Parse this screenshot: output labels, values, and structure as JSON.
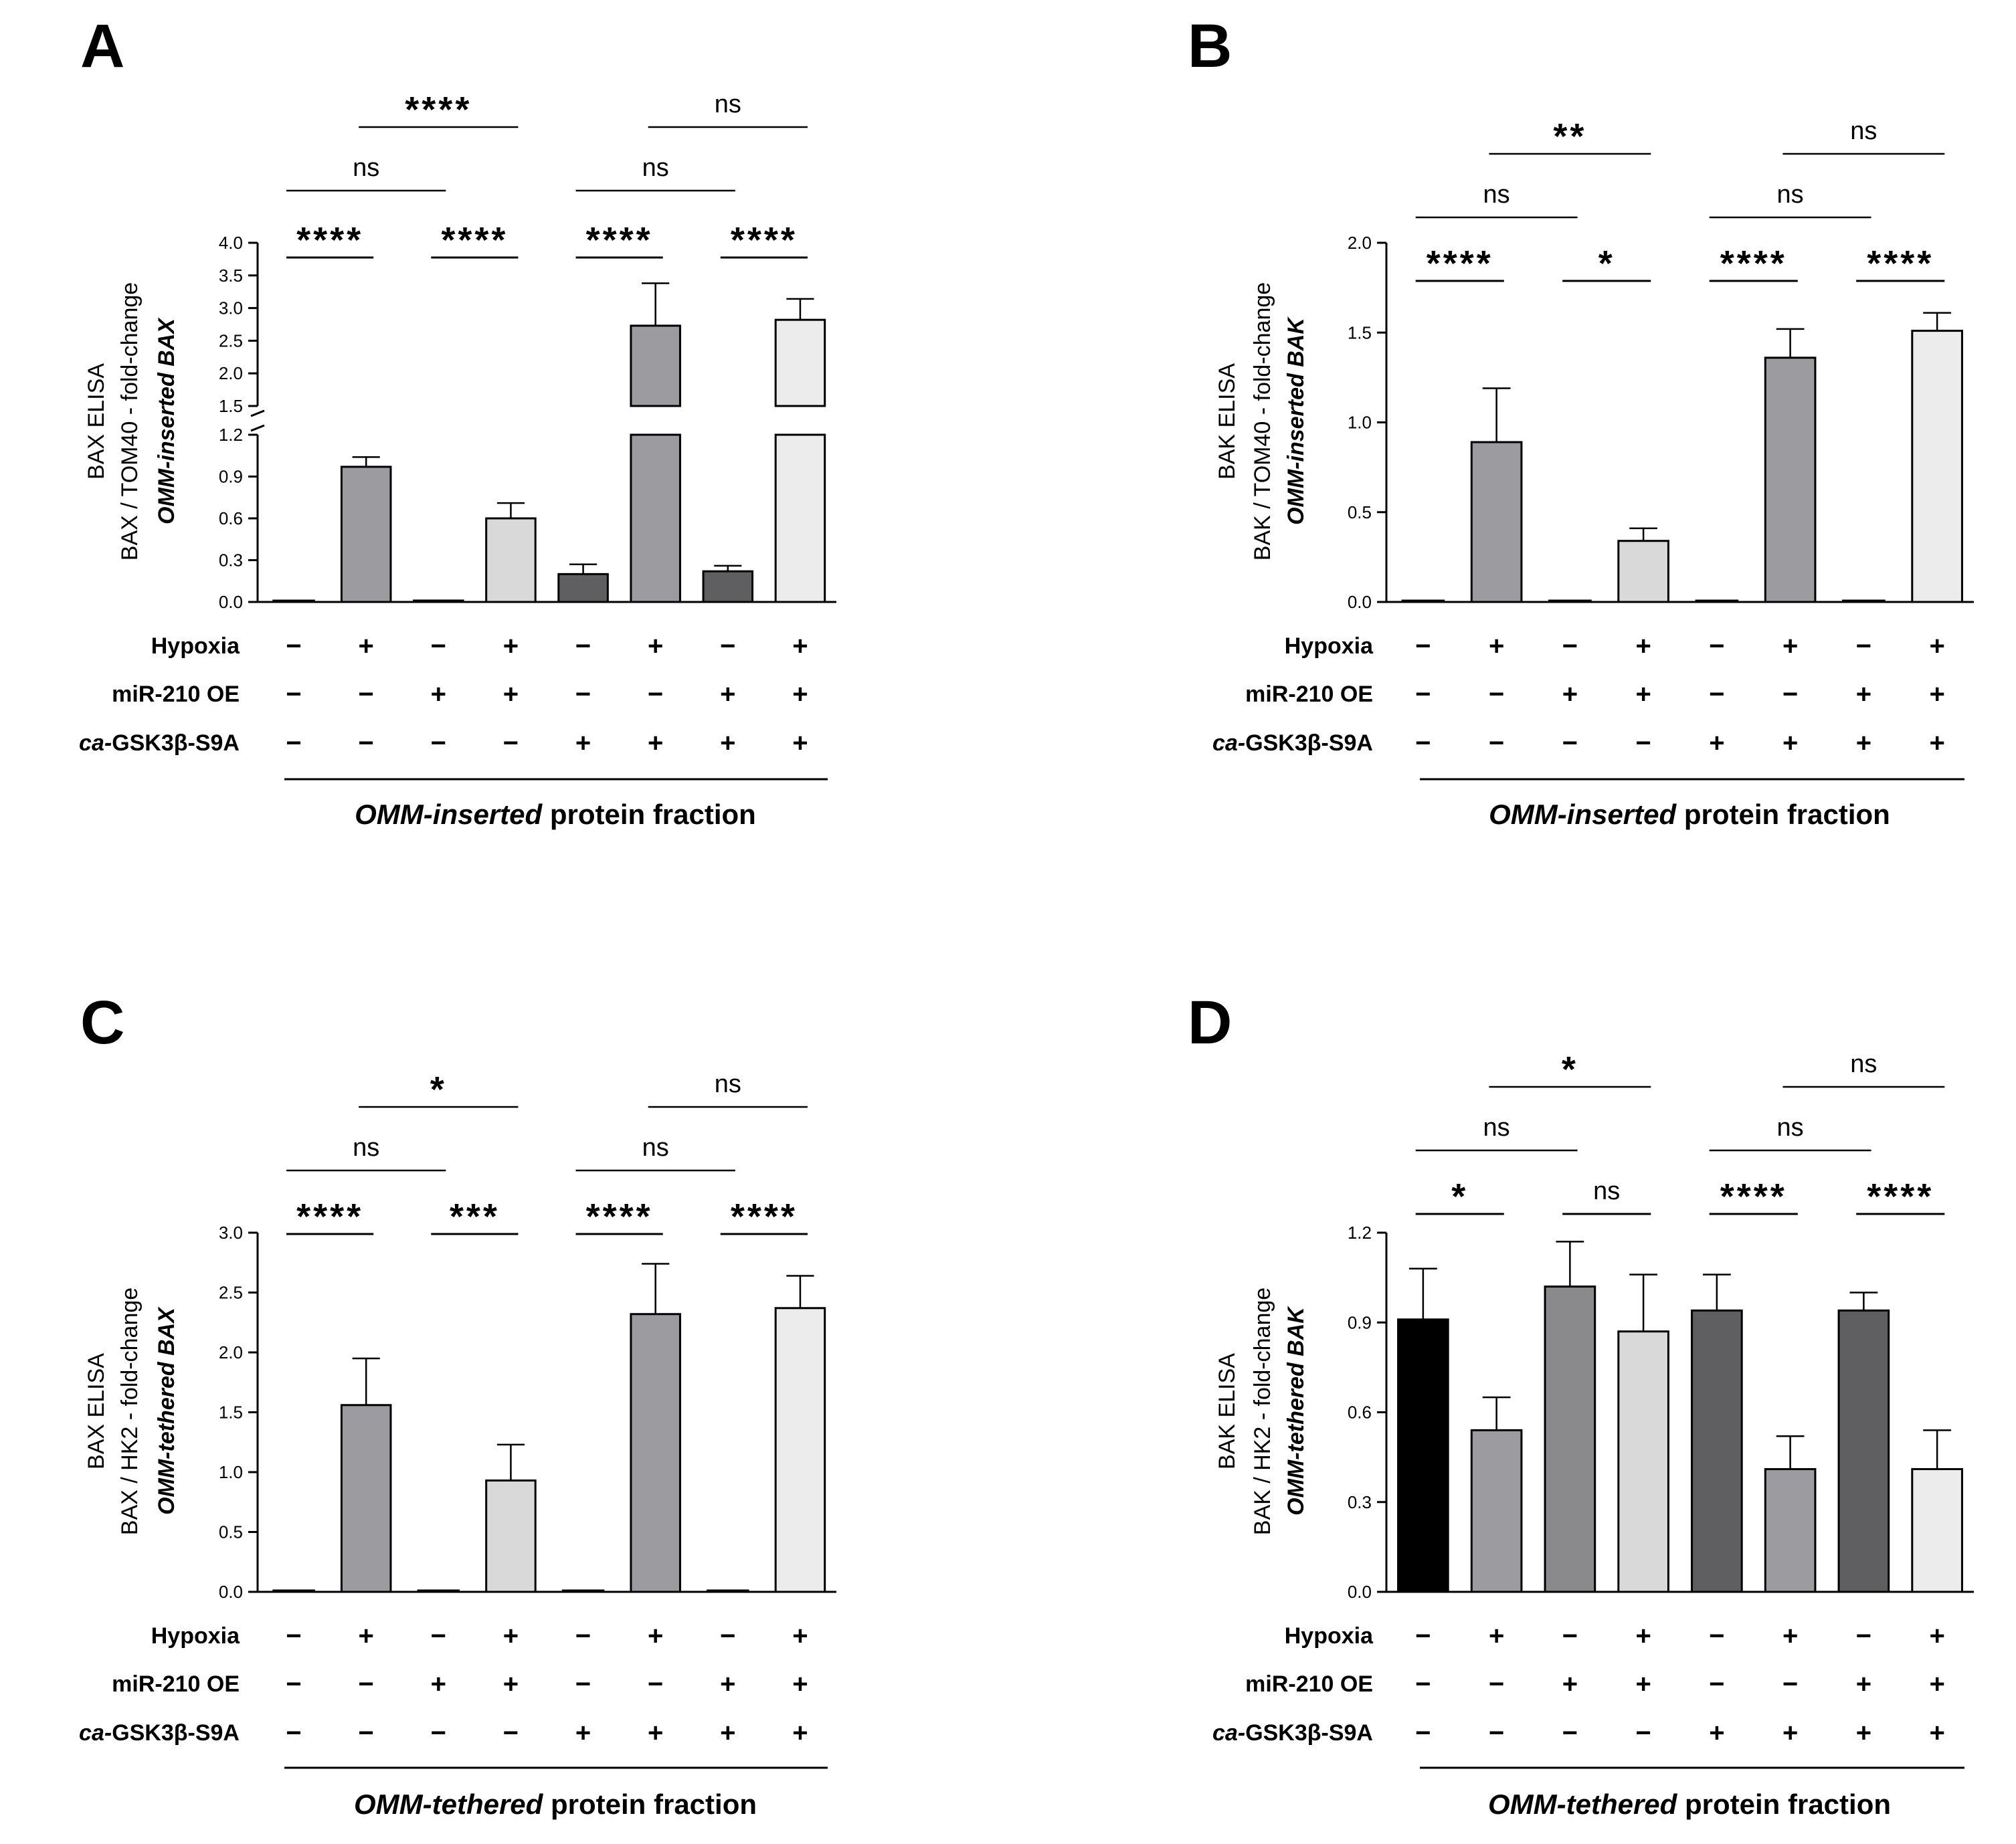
{
  "colors": {
    "black": "#000000",
    "dark": "#5f5f61",
    "medium": "#9b9ba0",
    "light": "#d9d9d9",
    "lighter": "#ececec",
    "medium2": "#8a8a8c"
  },
  "row_labels": [
    "Hypoxia",
    "miR-210 OE",
    "ca-GSK3β-S9A"
  ],
  "chart_data": [
    {
      "panel": "A",
      "type": "bar",
      "title": "A",
      "ylabel": [
        "BAX  ELISA",
        "BAX / TOM40 - fold-change",
        "OMM-inserted BAX"
      ],
      "broken_axis": true,
      "ylim_lower": [
        0,
        1.2
      ],
      "ylim_upper": [
        1.5,
        4.0
      ],
      "yticks_lower": [
        "0.0",
        "0.3",
        "0.6",
        "0.9",
        "1.2"
      ],
      "yticks_upper": [
        "1.5",
        "2.0",
        "2.5",
        "3.0",
        "3.5",
        "4.0"
      ],
      "values": [
        0.0,
        0.97,
        0.01,
        0.6,
        0.2,
        2.73,
        0.22,
        2.82
      ],
      "errors": [
        0.0,
        0.07,
        0.0,
        0.11,
        0.07,
        0.65,
        0.04,
        0.32
      ],
      "colors": [
        "medium",
        "medium",
        "light",
        "light",
        "dark",
        "medium",
        "dark",
        "lighter"
      ],
      "hypoxia": [
        "−",
        "+",
        "−",
        "+",
        "−",
        "+",
        "−",
        "+"
      ],
      "mir210": [
        "−",
        "−",
        "+",
        "+",
        "−",
        "−",
        "+",
        "+"
      ],
      "gsk": [
        "−",
        "−",
        "−",
        "−",
        "+",
        "+",
        "+",
        "+"
      ],
      "xlabel_italic": "OMM-inserted",
      "xlabel_rest": " protein fraction",
      "annotations": [
        {
          "from": 0,
          "to": 1,
          "level": 0,
          "text": "****"
        },
        {
          "from": 2,
          "to": 3,
          "level": 0,
          "text": "****"
        },
        {
          "from": 4,
          "to": 5,
          "level": 0,
          "text": "****"
        },
        {
          "from": 6,
          "to": 7,
          "level": 0,
          "text": "****"
        },
        {
          "from": 0,
          "to": 2,
          "level": 1,
          "text": "ns"
        },
        {
          "from": 4,
          "to": 6,
          "level": 1,
          "text": "ns"
        },
        {
          "from": 1,
          "to": 3,
          "level": 2,
          "text": "****"
        },
        {
          "from": 5,
          "to": 7,
          "level": 2,
          "text": "ns"
        }
      ]
    },
    {
      "panel": "B",
      "type": "bar",
      "title": "B",
      "ylabel": [
        "BAK  ELISA",
        "BAK / TOM40 - fold-change",
        "OMM-inserted BAK"
      ],
      "broken_axis": false,
      "ylim": [
        0,
        2.0
      ],
      "yticks": [
        "0.0",
        "0.5",
        "1.0",
        "1.5",
        "2.0"
      ],
      "tick_values": [
        0,
        0.5,
        1.0,
        1.5,
        2.0
      ],
      "values": [
        0.0,
        0.89,
        0.0,
        0.34,
        0.0,
        1.36,
        0.0,
        1.51
      ],
      "errors": [
        0.0,
        0.3,
        0.0,
        0.07,
        0.0,
        0.16,
        0.0,
        0.1
      ],
      "colors": [
        "medium",
        "medium",
        "light",
        "light",
        "dark",
        "medium",
        "dark",
        "lighter"
      ],
      "hypoxia": [
        "−",
        "+",
        "−",
        "+",
        "−",
        "+",
        "−",
        "+"
      ],
      "mir210": [
        "−",
        "−",
        "+",
        "+",
        "−",
        "−",
        "+",
        "+"
      ],
      "gsk": [
        "−",
        "−",
        "−",
        "−",
        "+",
        "+",
        "+",
        "+"
      ],
      "xlabel_italic": "OMM-inserted",
      "xlabel_rest": " protein fraction",
      "annotations": [
        {
          "from": 0,
          "to": 1,
          "level": 0,
          "text": "****"
        },
        {
          "from": 2,
          "to": 3,
          "level": 0,
          "text": "*"
        },
        {
          "from": 4,
          "to": 5,
          "level": 0,
          "text": "****"
        },
        {
          "from": 6,
          "to": 7,
          "level": 0,
          "text": "****"
        },
        {
          "from": 0,
          "to": 2,
          "level": 1,
          "text": "ns"
        },
        {
          "from": 4,
          "to": 6,
          "level": 1,
          "text": "ns"
        },
        {
          "from": 1,
          "to": 3,
          "level": 2,
          "text": "**"
        },
        {
          "from": 5,
          "to": 7,
          "level": 2,
          "text": "ns"
        }
      ]
    },
    {
      "panel": "C",
      "type": "bar",
      "title": "C",
      "ylabel": [
        "BAX  ELISA",
        "BAX / HK2 - fold-change",
        "OMM-tethered BAX"
      ],
      "broken_axis": false,
      "ylim": [
        0,
        3.0
      ],
      "yticks": [
        "0.0",
        "0.5",
        "1.0",
        "1.5",
        "2.0",
        "2.5",
        "3.0"
      ],
      "tick_values": [
        0,
        0.5,
        1.0,
        1.5,
        2.0,
        2.5,
        3.0
      ],
      "values": [
        0.0,
        1.56,
        0.0,
        0.93,
        0.0,
        2.32,
        0.0,
        2.37
      ],
      "errors": [
        0.0,
        0.39,
        0.0,
        0.3,
        0.0,
        0.42,
        0.0,
        0.27
      ],
      "colors": [
        "medium",
        "medium",
        "light",
        "light",
        "dark",
        "medium",
        "dark",
        "lighter"
      ],
      "hypoxia": [
        "−",
        "+",
        "−",
        "+",
        "−",
        "+",
        "−",
        "+"
      ],
      "mir210": [
        "−",
        "−",
        "+",
        "+",
        "−",
        "−",
        "+",
        "+"
      ],
      "gsk": [
        "−",
        "−",
        "−",
        "−",
        "+",
        "+",
        "+",
        "+"
      ],
      "xlabel_italic": "OMM-tethered",
      "xlabel_rest": " protein fraction",
      "annotations": [
        {
          "from": 0,
          "to": 1,
          "level": 0,
          "text": "****"
        },
        {
          "from": 2,
          "to": 3,
          "level": 0,
          "text": "***"
        },
        {
          "from": 4,
          "to": 5,
          "level": 0,
          "text": "****"
        },
        {
          "from": 6,
          "to": 7,
          "level": 0,
          "text": "****"
        },
        {
          "from": 0,
          "to": 2,
          "level": 1,
          "text": "ns"
        },
        {
          "from": 4,
          "to": 6,
          "level": 1,
          "text": "ns"
        },
        {
          "from": 1,
          "to": 3,
          "level": 2,
          "text": "*"
        },
        {
          "from": 5,
          "to": 7,
          "level": 2,
          "text": "ns"
        }
      ]
    },
    {
      "panel": "D",
      "type": "bar",
      "title": "D",
      "ylabel": [
        "BAK  ELISA",
        "BAK / HK2 - fold-change",
        "OMM-tethered BAK"
      ],
      "broken_axis": false,
      "ylim": [
        0,
        1.2
      ],
      "yticks": [
        "0.0",
        "0.3",
        "0.6",
        "0.9",
        "1.2"
      ],
      "tick_values": [
        0,
        0.3,
        0.6,
        0.9,
        1.2
      ],
      "values": [
        0.91,
        0.54,
        1.02,
        0.87,
        0.94,
        0.41,
        0.94,
        0.41
      ],
      "errors": [
        0.17,
        0.11,
        0.15,
        0.19,
        0.12,
        0.11,
        0.06,
        0.13
      ],
      "colors": [
        "black",
        "medium",
        "medium2",
        "light",
        "dark",
        "medium",
        "dark",
        "lighter"
      ],
      "hypoxia": [
        "−",
        "+",
        "−",
        "+",
        "−",
        "+",
        "−",
        "+"
      ],
      "mir210": [
        "−",
        "−",
        "+",
        "+",
        "−",
        "−",
        "+",
        "+"
      ],
      "gsk": [
        "−",
        "−",
        "−",
        "−",
        "+",
        "+",
        "+",
        "+"
      ],
      "xlabel_italic": "OMM-tethered",
      "xlabel_rest": " protein fraction",
      "annotations": [
        {
          "from": 0,
          "to": 1,
          "level": 0,
          "text": "*"
        },
        {
          "from": 2,
          "to": 3,
          "level": 0,
          "text": "ns"
        },
        {
          "from": 4,
          "to": 5,
          "level": 0,
          "text": "****"
        },
        {
          "from": 6,
          "to": 7,
          "level": 0,
          "text": "****"
        },
        {
          "from": 0,
          "to": 2,
          "level": 1,
          "text": "ns"
        },
        {
          "from": 4,
          "to": 6,
          "level": 1,
          "text": "ns"
        },
        {
          "from": 1,
          "to": 3,
          "level": 2,
          "text": "*"
        },
        {
          "from": 5,
          "to": 7,
          "level": 2,
          "text": "ns"
        }
      ]
    }
  ]
}
